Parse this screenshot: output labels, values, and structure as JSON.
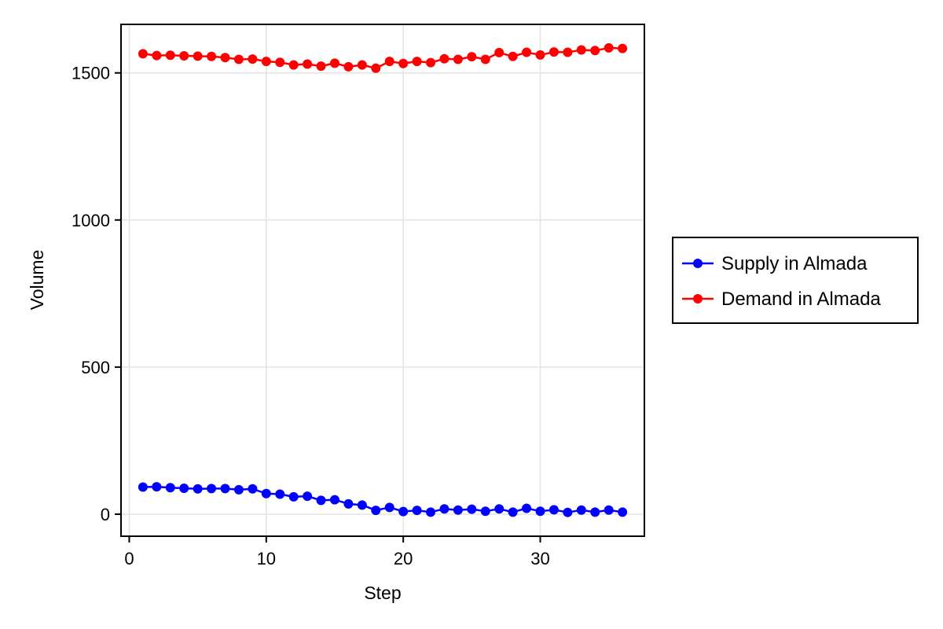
{
  "chart_data": {
    "type": "line",
    "xlabel": "Step",
    "ylabel": "Volume",
    "xlim": [
      -0.6,
      37.6
    ],
    "ylim": [
      -75,
      1665
    ],
    "xticks": [
      0,
      10,
      20,
      30
    ],
    "yticks": [
      0,
      500,
      1000,
      1500
    ],
    "grid": true,
    "legend_position": "right",
    "x": [
      1,
      2,
      3,
      4,
      5,
      6,
      7,
      8,
      9,
      10,
      11,
      12,
      13,
      14,
      15,
      16,
      17,
      18,
      19,
      20,
      21,
      22,
      23,
      24,
      25,
      26,
      27,
      28,
      29,
      30,
      31,
      32,
      33,
      34,
      35,
      36
    ],
    "series": [
      {
        "name": "Supply in Almada",
        "color": "#0000ff",
        "values": [
          92,
          93,
          90,
          88,
          86,
          87,
          87,
          83,
          86,
          70,
          68,
          59,
          61,
          47,
          49,
          35,
          31,
          13,
          23,
          9,
          13,
          7,
          18,
          14,
          17,
          10,
          18,
          7,
          20,
          10,
          15,
          6,
          14,
          7,
          14,
          7
        ]
      },
      {
        "name": "Demand in Almada",
        "color": "#ff0000",
        "values": [
          1565,
          1559,
          1560,
          1558,
          1557,
          1556,
          1552,
          1546,
          1547,
          1539,
          1536,
          1527,
          1530,
          1523,
          1533,
          1521,
          1527,
          1516,
          1539,
          1532,
          1539,
          1535,
          1548,
          1546,
          1555,
          1546,
          1569,
          1556,
          1570,
          1561,
          1571,
          1570,
          1578,
          1576,
          1585,
          1583
        ]
      }
    ]
  }
}
